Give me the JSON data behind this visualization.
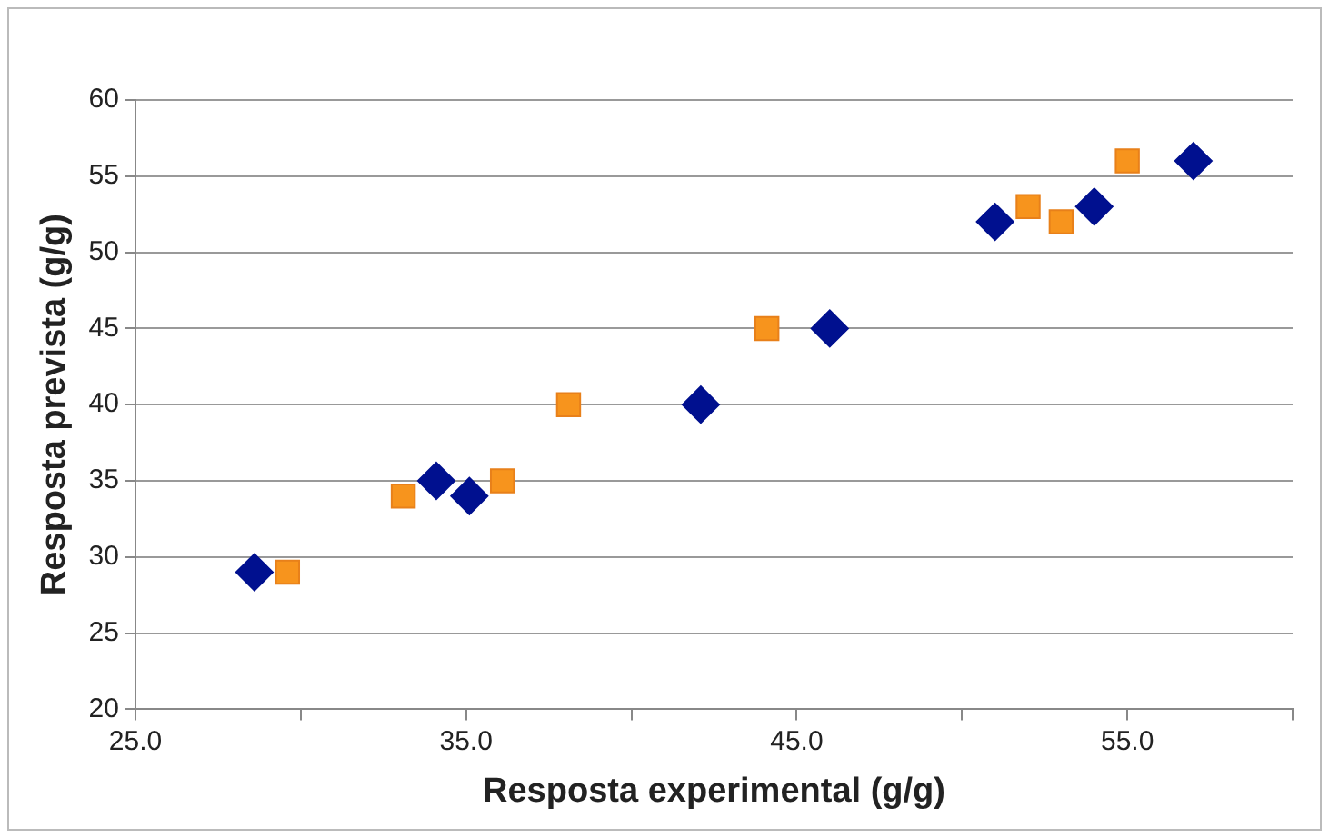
{
  "chart_data": {
    "type": "scatter",
    "xlabel": "Resposta experimental (g/g)",
    "ylabel": "Resposta prevista (g/g)",
    "series": [
      {
        "color": "#00108f",
        "marker": "diamond",
        "x": [
          28.6,
          34.1,
          35.1,
          42.1,
          46.0,
          51.0,
          54.0,
          57.0
        ],
        "values": [
          29,
          35,
          34,
          40,
          45,
          52,
          53,
          56
        ]
      },
      {
        "color": "#f7941d",
        "marker": "square",
        "x": [
          29.6,
          33.1,
          36.1,
          38.1,
          44.1,
          52.0,
          53.0,
          55.0
        ],
        "values": [
          29,
          34,
          35,
          40,
          45,
          53,
          52,
          56
        ]
      }
    ],
    "xlim": [
      25,
      60
    ],
    "xticks": [
      {
        "value": 25,
        "label": "25.0"
      },
      {
        "value": 30,
        "label": null
      },
      {
        "value": 35,
        "label": "35.0"
      },
      {
        "value": 40,
        "label": null
      },
      {
        "value": 45,
        "label": "45.0"
      },
      {
        "value": 50,
        "label": null
      },
      {
        "value": 55,
        "label": "55.0"
      },
      {
        "value": 60,
        "label": null
      }
    ],
    "ylim": [
      20,
      60
    ],
    "yticks": [
      20,
      25,
      30,
      35,
      40,
      45,
      50,
      55,
      60
    ],
    "grid": "y",
    "legend": false
  }
}
